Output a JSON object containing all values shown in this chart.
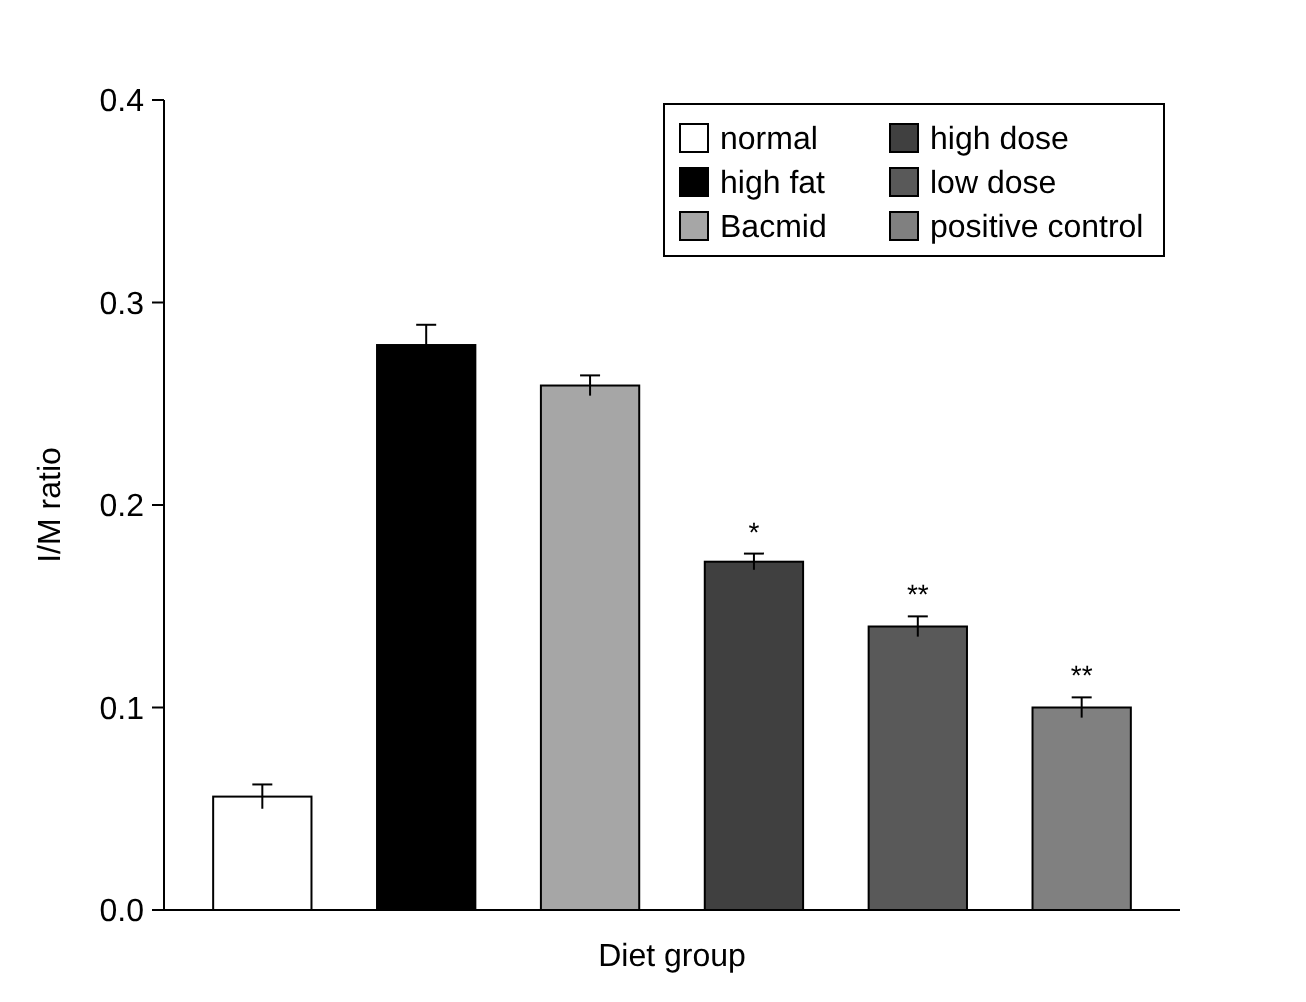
{
  "chart_data": {
    "type": "bar",
    "xlabel": "Diet group",
    "ylabel": "I/M ratio",
    "categories": [
      null,
      null,
      null,
      null,
      null,
      null
    ],
    "ylim": [
      0,
      0.4
    ],
    "yticks": [
      {
        "value": 0,
        "label": "0.0"
      },
      0.1,
      0.2,
      0.3,
      0.4
    ],
    "legend": "top right",
    "grid": false,
    "series": [
      {
        "name": "normal",
        "color": "#ffffff",
        "values": [
          0.056,
          null,
          null,
          null,
          null,
          null
        ],
        "errors": [
          0.006,
          null,
          null,
          null,
          null,
          null
        ]
      },
      {
        "name": "high fat",
        "color": "#000000",
        "values": [
          null,
          0.279,
          null,
          null,
          null,
          null
        ],
        "errors": [
          null,
          0.01,
          null,
          null,
          null,
          null
        ]
      },
      {
        "name": "Bacmid",
        "color": "#a6a6a6",
        "values": [
          null,
          null,
          0.259,
          null,
          null,
          null
        ],
        "errors": [
          null,
          null,
          0.005,
          null,
          null,
          null
        ]
      },
      {
        "name": "high dose",
        "color": "#404040",
        "values": [
          null,
          null,
          null,
          0.172,
          null,
          null
        ],
        "errors": [
          null,
          null,
          null,
          0.004,
          null,
          null
        ],
        "value_labels": [
          null,
          null,
          null,
          "*",
          null,
          null
        ]
      },
      {
        "name": "low dose",
        "color": "#595959",
        "values": [
          null,
          null,
          null,
          null,
          0.14,
          null
        ],
        "errors": [
          null,
          null,
          null,
          null,
          0.005,
          null
        ],
        "value_labels": [
          null,
          null,
          null,
          null,
          "**",
          null
        ]
      },
      {
        "name": "positive control",
        "color": "#808080",
        "values": [
          null,
          null,
          null,
          null,
          null,
          0.1
        ],
        "errors": [
          null,
          null,
          null,
          null,
          null,
          0.005
        ],
        "value_labels": [
          null,
          null,
          null,
          null,
          null,
          "**"
        ]
      }
    ]
  }
}
